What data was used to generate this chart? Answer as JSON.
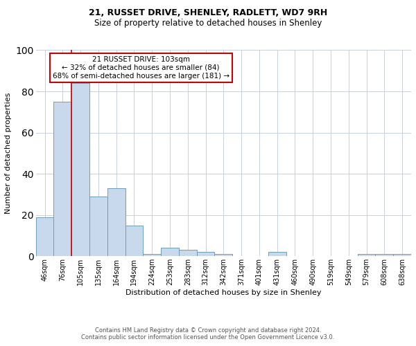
{
  "title1": "21, RUSSET DRIVE, SHENLEY, RADLETT, WD7 9RH",
  "title2": "Size of property relative to detached houses in Shenley",
  "xlabel": "Distribution of detached houses by size in Shenley",
  "ylabel": "Number of detached properties",
  "footnote1": "Contains HM Land Registry data © Crown copyright and database right 2024.",
  "footnote2": "Contains public sector information licensed under the Open Government Licence v3.0.",
  "annotation_title": "21 RUSSET DRIVE: 103sqm",
  "annotation_line2": "← 32% of detached houses are smaller (84)",
  "annotation_line3": "68% of semi-detached houses are larger (181) →",
  "bar_labels": [
    "46sqm",
    "76sqm",
    "105sqm",
    "135sqm",
    "164sqm",
    "194sqm",
    "224sqm",
    "253sqm",
    "283sqm",
    "312sqm",
    "342sqm",
    "371sqm",
    "401sqm",
    "431sqm",
    "460sqm",
    "490sqm",
    "519sqm",
    "549sqm",
    "579sqm",
    "608sqm",
    "638sqm"
  ],
  "bar_values": [
    19,
    75,
    84,
    29,
    33,
    15,
    1,
    4,
    3,
    2,
    1,
    0,
    0,
    2,
    0,
    0,
    0,
    0,
    1,
    1,
    1
  ],
  "bar_color": "#c9d9ec",
  "bar_edge_color": "#6a9fc0",
  "vline_color": "#cc0000",
  "vline_bar_index": 2,
  "ylim": [
    0,
    100
  ],
  "annotation_box_color": "#ffffff",
  "annotation_box_edge": "#cc0000",
  "grid_color": "#c8d0e0",
  "background_color": "#ffffff",
  "title1_fontsize": 9,
  "title2_fontsize": 8.5,
  "ylabel_fontsize": 8,
  "xlabel_fontsize": 8,
  "tick_fontsize": 7,
  "annotation_fontsize": 7.5,
  "footnote_fontsize": 6
}
